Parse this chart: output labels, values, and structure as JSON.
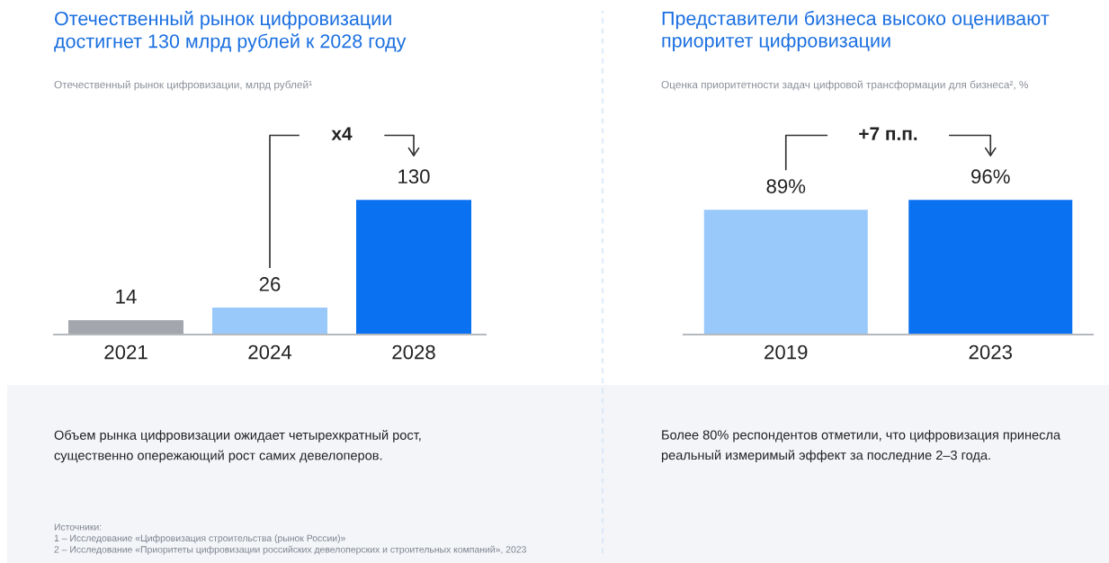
{
  "chart_data": [
    {
      "type": "bar",
      "title": "Отечественный рынок цифровизации\nдостигнет 130 млрд рублей к 2028 году",
      "subtitle": "Отечественный рынок цифровизации, млрд рублей¹",
      "categories": [
        "2021",
        "2024",
        "2028"
      ],
      "values": [
        14,
        26,
        130
      ],
      "colors": [
        "#a3a6ad",
        "#99c9fb",
        "#0a72f0"
      ],
      "data_labels": true,
      "annotations": [
        "x4",
        "Объем рынка цифровизации ожидает четырехкратный рост,\nсущественно опережающий рост самих девелоперов.",
        "Источники:\n1 – Исследование «Цифровизация строительства (рынок России)»\n2 – Исследование «Приоритеты цифровизации российских девелоперских и строительных компаний», 2023"
      ]
    },
    {
      "type": "bar",
      "title": "Представители бизнеса высоко оценивают\nприоритет цифровизации",
      "subtitle": "Оценка приоритетности задач цифровой трансформации для бизнеса², %",
      "categories": [
        "2019",
        "2023"
      ],
      "values": [
        89,
        96
      ],
      "value_labels": [
        "89%",
        "96%"
      ],
      "colors": [
        "#99c9fb",
        "#0a72f0"
      ],
      "annotations": [
        "+7 п.п.",
        "Более 80% респондентов отметили, что цифровизация принесла\nреальный измеримый эффект за последние 2–3 года."
      ]
    }
  ]
}
